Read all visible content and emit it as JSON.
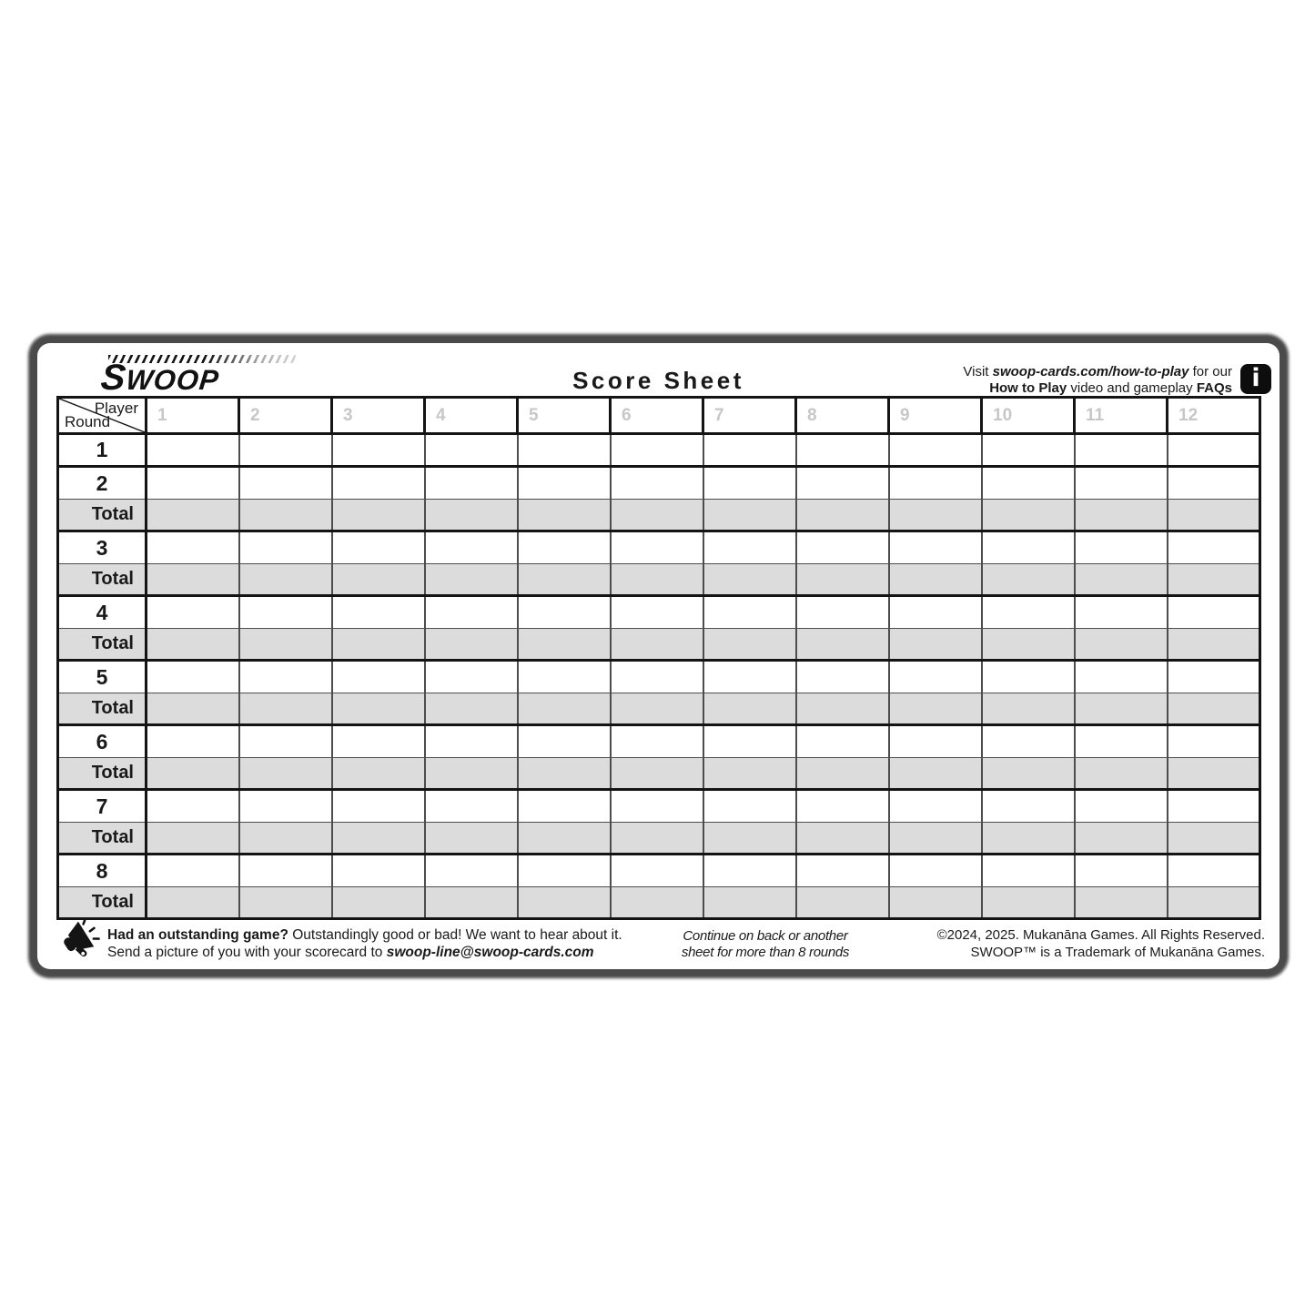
{
  "brand": {
    "logo": "SWOOP"
  },
  "header": {
    "title": "Score Sheet",
    "visit": {
      "line1_prefix": "Visit ",
      "link": "swoop-cards.com/how-to-play",
      "line1_suffix": " for our",
      "line2_bold1": "How to Play",
      "line2_text": " video and gameplay ",
      "line2_bold2": "FAQs"
    },
    "info_icon_glyph": "i"
  },
  "table": {
    "corner": {
      "player": "Player",
      "round": "Round"
    },
    "player_columns": [
      "1",
      "2",
      "3",
      "4",
      "5",
      "6",
      "7",
      "8",
      "9",
      "10",
      "11",
      "12"
    ],
    "rows": [
      {
        "label": "1",
        "type": "round"
      },
      {
        "label": "2",
        "type": "round"
      },
      {
        "label": "Total",
        "type": "total"
      },
      {
        "label": "3",
        "type": "round"
      },
      {
        "label": "Total",
        "type": "total"
      },
      {
        "label": "4",
        "type": "round"
      },
      {
        "label": "Total",
        "type": "total"
      },
      {
        "label": "5",
        "type": "round"
      },
      {
        "label": "Total",
        "type": "total"
      },
      {
        "label": "6",
        "type": "round"
      },
      {
        "label": "Total",
        "type": "total"
      },
      {
        "label": "7",
        "type": "round"
      },
      {
        "label": "Total",
        "type": "total"
      },
      {
        "label": "8",
        "type": "round"
      },
      {
        "label": "Total",
        "type": "total"
      }
    ]
  },
  "footer": {
    "left": {
      "line1_bold": "Had an outstanding game?",
      "line1_rest": "  Outstandingly good or bad!  We want to hear about it.",
      "line2_prefix": "Send a picture of you with your scorecard to ",
      "line2_email": "swoop-line@swoop-cards.com"
    },
    "center": {
      "line1": "Continue on back or another",
      "line2": "sheet for more than 8 rounds"
    },
    "right": {
      "line1": "©2024, 2025. Mukanāna Games.  All Rights Reserved.",
      "line2": "SWOOP™ is a Trademark of Mukanāna Games."
    }
  },
  "colors": {
    "card_outline": "#4a4a4a",
    "grid_thick": "#141414",
    "grid_thin": "#4d4d4d",
    "total_row_bg": "#dcdcdc",
    "column_header_text": "#c7c7c7",
    "text": "#1a1a1a"
  }
}
